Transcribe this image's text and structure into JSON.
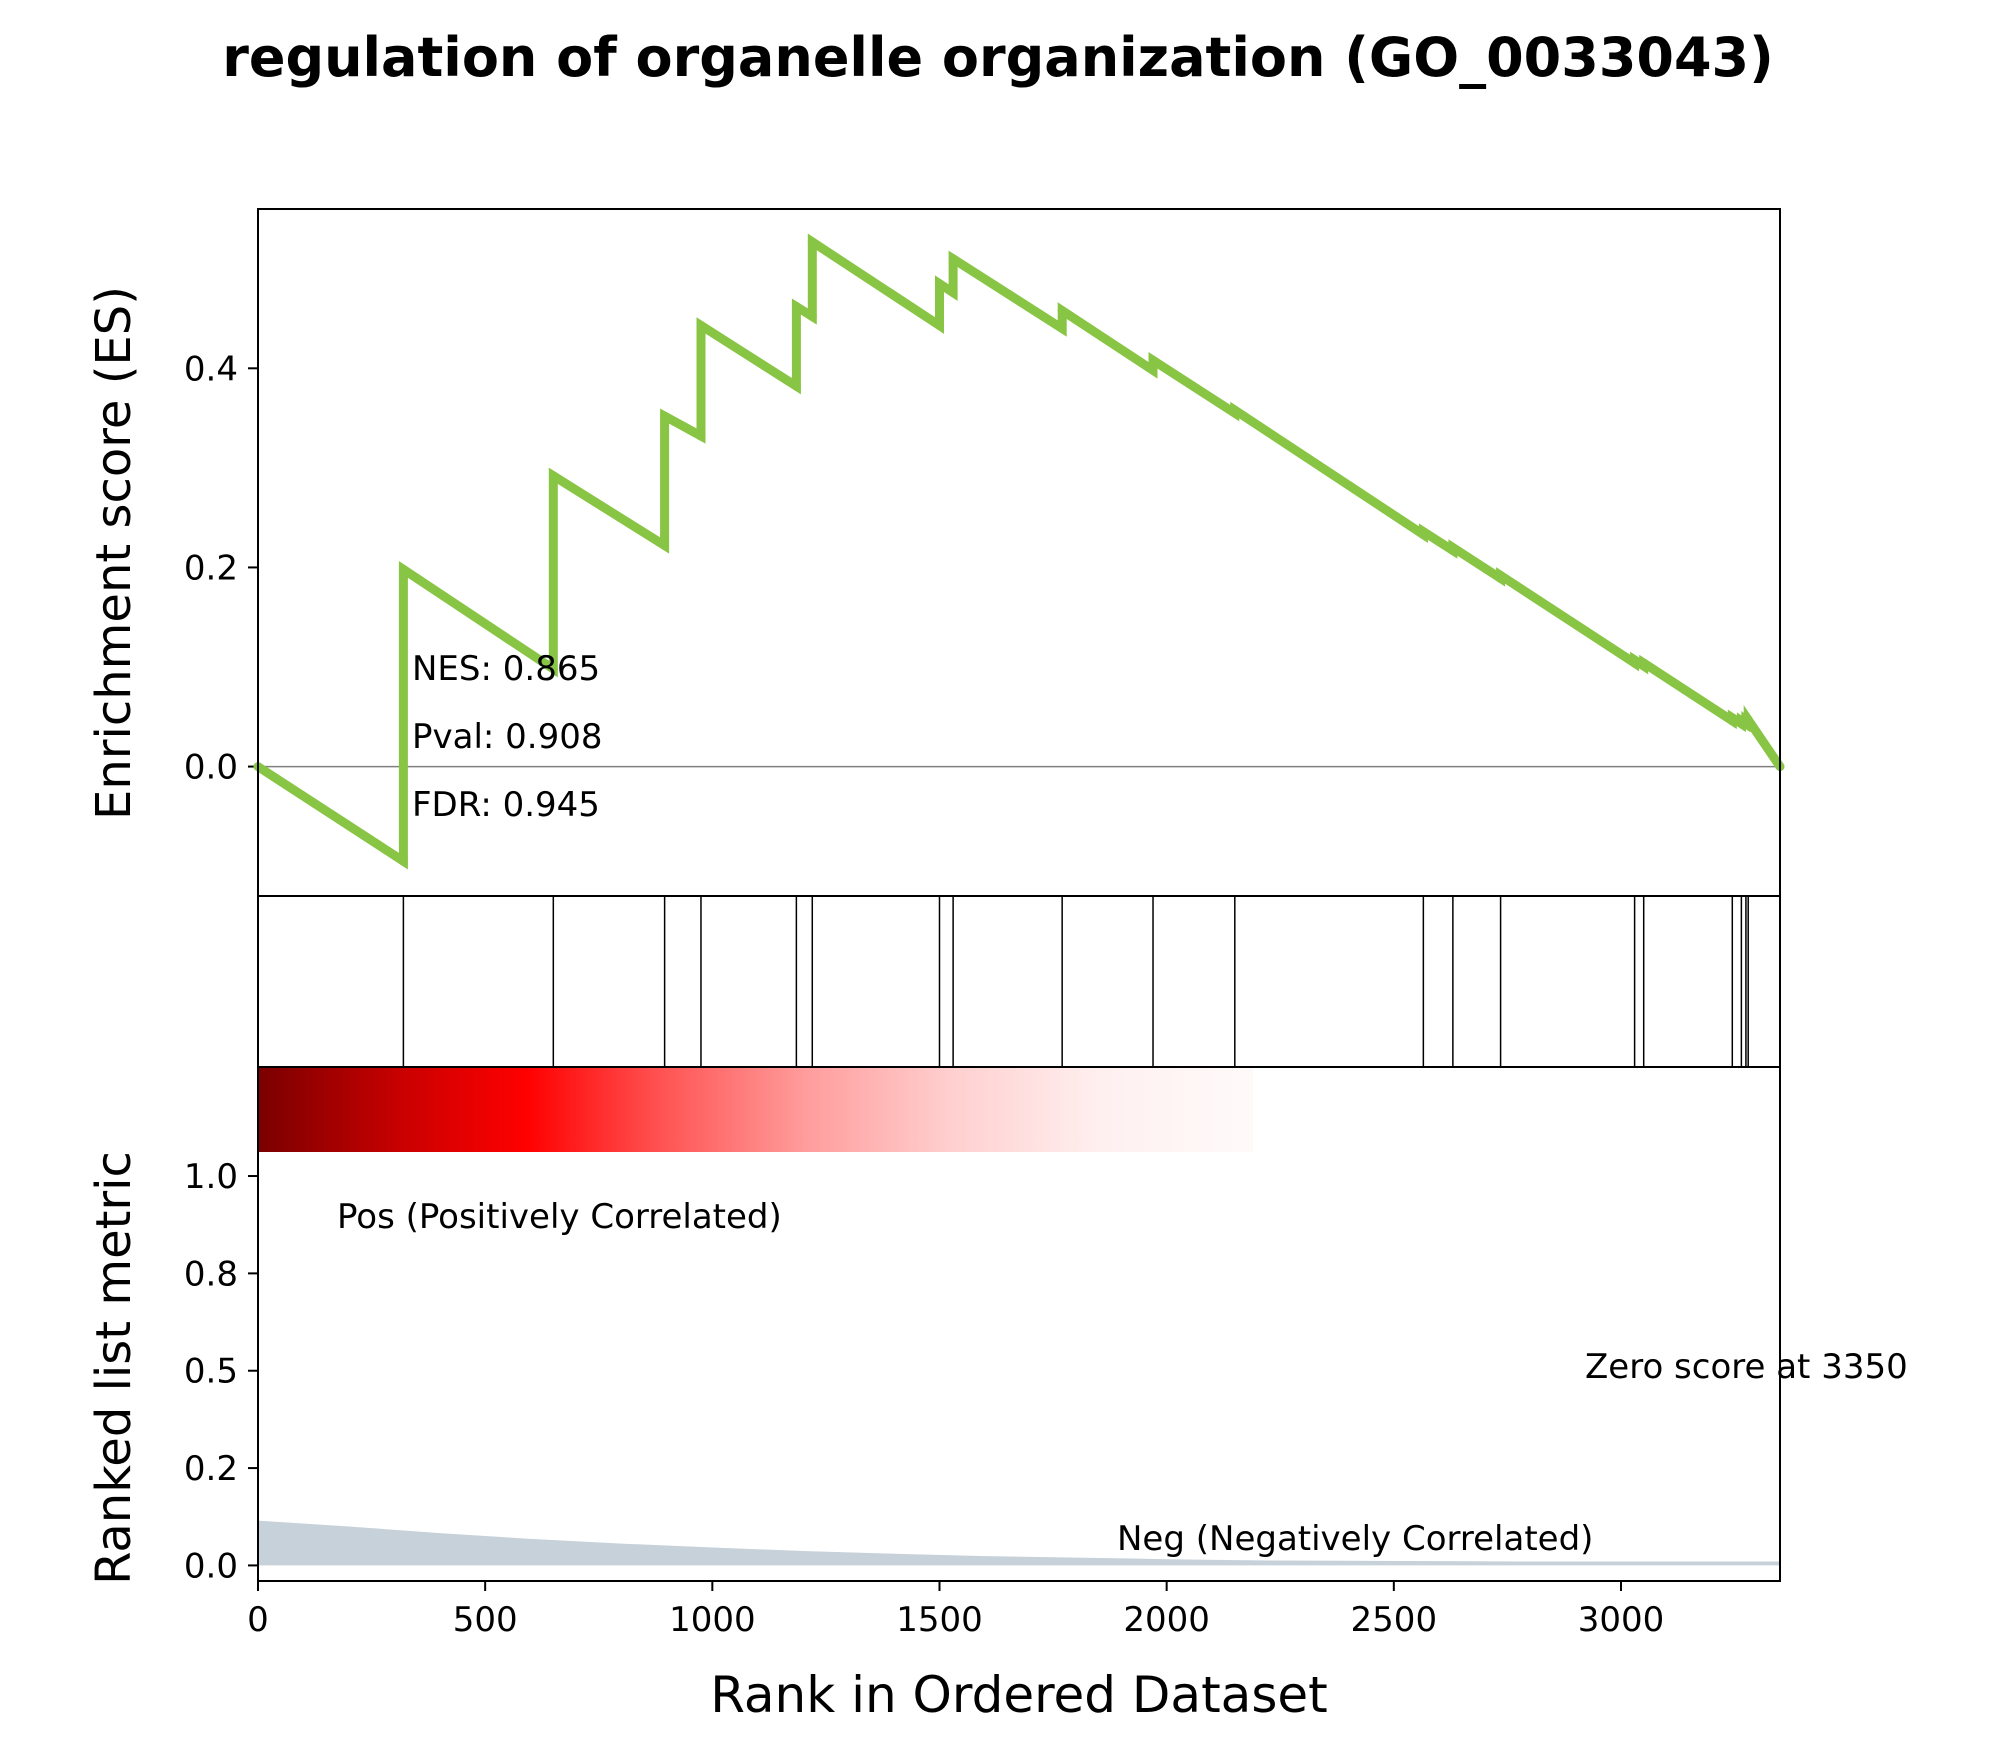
{
  "chart_data": {
    "type": "line",
    "title": "regulation of organelle organization (GO_0033043)",
    "xlabel": "Rank in Ordered Dataset",
    "xlim": [
      0,
      3350
    ],
    "x_ticks": [
      "0",
      "500",
      "1000",
      "1500",
      "2000",
      "2500",
      "3000"
    ],
    "es_panel": {
      "ylabel": "Enrichment score (ES)",
      "ylim": [
        -0.13,
        0.56
      ],
      "y_ticks": [
        "0.0",
        "0.2",
        "0.4"
      ],
      "line_color": "#88c544",
      "zero_line": true,
      "stats": {
        "nes": "NES: 0.865",
        "pval": "Pval: 0.908",
        "fdr": "FDR: 0.945"
      },
      "series": [
        {
          "x": [
            0,
            320,
            320,
            650,
            650,
            895,
            895,
            975,
            975,
            1185,
            1185,
            1220,
            1220,
            1500,
            1500,
            1530,
            1530,
            1770,
            1770,
            1970,
            1970,
            2150,
            2150,
            2565,
            2565,
            2630,
            2630,
            2735,
            2735,
            3030,
            3030,
            3050,
            3050,
            3245,
            3245,
            3265,
            3265,
            3275,
            3275,
            3280,
            3280,
            3350
          ],
          "y": [
            0.0,
            -0.095,
            0.198,
            0.098,
            0.292,
            0.222,
            0.352,
            0.332,
            0.443,
            0.382,
            0.462,
            0.452,
            0.527,
            0.443,
            0.485,
            0.476,
            0.51,
            0.44,
            0.458,
            0.398,
            0.408,
            0.355,
            0.358,
            0.233,
            0.236,
            0.217,
            0.22,
            0.189,
            0.192,
            0.104,
            0.107,
            0.101,
            0.104,
            0.046,
            0.049,
            0.043,
            0.046,
            0.043,
            0.046,
            0.044,
            0.047,
            0.0
          ]
        }
      ]
    },
    "hits": [
      320,
      650,
      895,
      975,
      1185,
      1220,
      1500,
      1530,
      1770,
      1970,
      2150,
      2565,
      2630,
      2735,
      3030,
      3050,
      3245,
      3265,
      3275,
      3280
    ],
    "rank_panel": {
      "ylabel": "Ranked list metric",
      "ylim": [
        -0.04,
        1.28
      ],
      "y_ticks": [
        "0.0",
        "0.2",
        "0.5",
        "0.8",
        "1.0"
      ],
      "y_tick_values": [
        0.0,
        0.25,
        0.5,
        0.75,
        1.0
      ],
      "pos_label": "Pos (Positively Correlated)",
      "pos_color": "#ff0000",
      "neg_label": "Neg (Negatively Correlated)",
      "neg_color": "#0000ff",
      "zero_label": "Zero score at 3350",
      "fill_color": "#c6d1da",
      "metric": {
        "x": [
          0,
          200,
          400,
          600,
          800,
          1000,
          1200,
          1400,
          1600,
          1800,
          2000,
          2200,
          2400,
          2600,
          2800,
          3000,
          3200,
          3350
        ],
        "y": [
          0.115,
          0.1,
          0.083,
          0.068,
          0.056,
          0.046,
          0.037,
          0.03,
          0.024,
          0.02,
          0.016,
          0.013,
          0.012,
          0.011,
          0.01,
          0.01,
          0.01,
          0.01
        ]
      }
    }
  }
}
